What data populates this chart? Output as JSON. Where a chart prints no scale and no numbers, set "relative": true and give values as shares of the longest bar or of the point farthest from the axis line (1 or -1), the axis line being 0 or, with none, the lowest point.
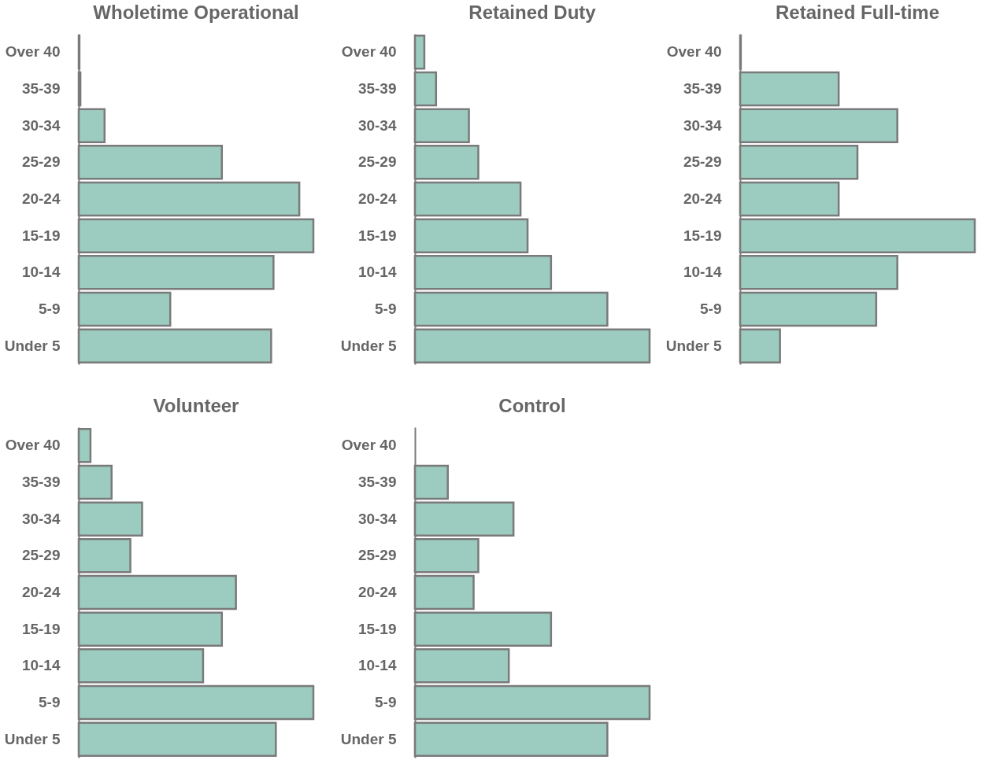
{
  "chart_data": [
    {
      "type": "bar",
      "orientation": "horizontal",
      "relative": true,
      "title": "Wholetime Operational",
      "color": "#9ccbbf",
      "categories": [
        "Over 40",
        "35-39",
        "30-34",
        "25-29",
        "20-24",
        "15-19",
        "10-14",
        "5-9",
        "Under 5"
      ],
      "values": [
        0.003,
        0.007,
        0.11,
        0.61,
        0.94,
        1,
        0.83,
        0.39,
        0.82
      ]
    },
    {
      "type": "bar",
      "orientation": "horizontal",
      "relative": true,
      "title": "Retained Duty",
      "color": "#9ccbbf",
      "categories": [
        "Over 40",
        "35-39",
        "30-34",
        "25-29",
        "20-24",
        "15-19",
        "10-14",
        "5-9",
        "Under 5"
      ],
      "values": [
        0.04,
        0.09,
        0.23,
        0.27,
        0.45,
        0.48,
        0.58,
        0.82,
        1
      ]
    },
    {
      "type": "bar",
      "orientation": "horizontal",
      "relative": true,
      "title": "Retained Full-time",
      "color": "#9ccbbf",
      "categories": [
        "Over 40",
        "35-39",
        "30-34",
        "25-29",
        "20-24",
        "15-19",
        "10-14",
        "5-9",
        "Under 5"
      ],
      "values": [
        0.003,
        0.42,
        0.67,
        0.5,
        0.42,
        1,
        0.67,
        0.58,
        0.17
      ]
    },
    {
      "type": "bar",
      "orientation": "horizontal",
      "relative": true,
      "title": "Volunteer",
      "color": "#9ccbbf",
      "categories": [
        "Over 40",
        "35-39",
        "30-34",
        "25-29",
        "20-24",
        "15-19",
        "10-14",
        "5-9",
        "Under 5"
      ],
      "values": [
        0.05,
        0.14,
        0.27,
        0.22,
        0.67,
        0.61,
        0.53,
        1,
        0.84
      ]
    },
    {
      "type": "bar",
      "orientation": "horizontal",
      "relative": true,
      "title": "Control",
      "color": "#9ccbbf",
      "categories": [
        "Over 40",
        "35-39",
        "30-34",
        "25-29",
        "20-24",
        "15-19",
        "10-14",
        "5-9",
        "Under 5"
      ],
      "values": [
        null,
        0.14,
        0.42,
        0.27,
        0.25,
        0.58,
        0.4,
        1,
        0.82
      ]
    }
  ]
}
